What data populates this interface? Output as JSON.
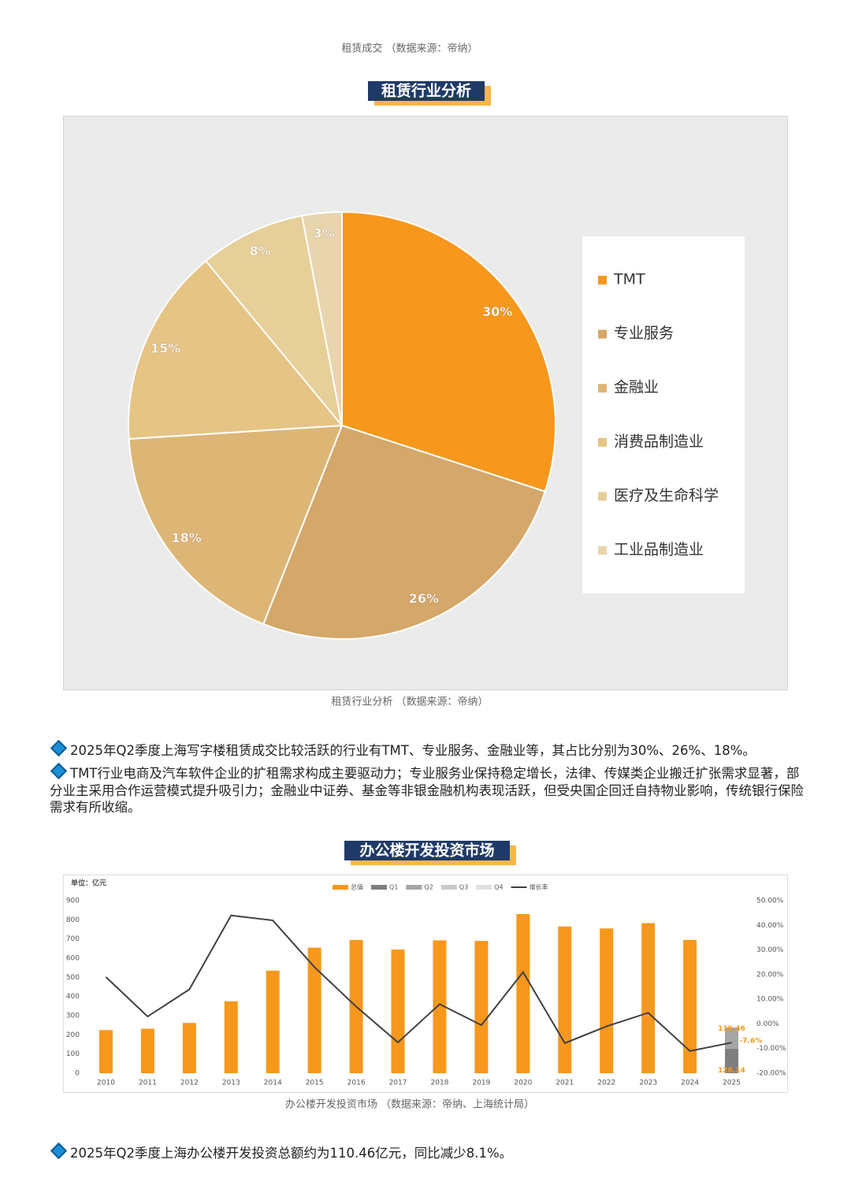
{
  "top_caption": "租赁成交 （数据来源：帝纳）",
  "section_titles": [
    "租赁行业分析",
    "办公楼开发投资市场"
  ],
  "captions": [
    "租赁行业分析 （数据来源：帝纳）",
    "办公楼开发投资市场 （数据来源：帝纳、上海统计局）"
  ],
  "paragraphs": [
    "2025年Q2季度上海写字楼租赁成交比较活跃的行业有TMT、专业服务、金融业等，其占比分别为30%、26%、18%。",
    "TMT行业电商及汽车软件企业的扩租需求构成主要驱动力；专业服务业保持稳定增长，法律、传媒类企业搬迁扩张需求显著，部分业主采用合作运营模式提升吸引力；金融业中证券、基金等非银金融机构表现活跃，但受央国企回迁自持物业影响，传统银行保险需求有所收缩。",
    "2025年Q2季度上海办公楼开发投资总额约为110.46亿元，同比减少8.1%。"
  ],
  "chart_data": [
    {
      "type": "pie",
      "categories": [
        "TMT",
        "专业服务",
        "金融业",
        "消费品制造业",
        "医疗及生命科学",
        "工业品制造业"
      ],
      "values": [
        30,
        26,
        18,
        15,
        8,
        3
      ],
      "value_labels": [
        "30%",
        "26%",
        "18%",
        "15%",
        "8%",
        "3%"
      ],
      "colors": [
        "#f7981d",
        "#d4a76a",
        "#ddb676",
        "#e6c485",
        "#e6cf98",
        "#e8d5ae"
      ],
      "legend": "right"
    },
    {
      "type": "bar",
      "y_label": "单位：亿元",
      "categories": [
        "2010",
        "2011",
        "2012",
        "2013",
        "2014",
        "2015",
        "2016",
        "2017",
        "2018",
        "2019",
        "2020",
        "2021",
        "2022",
        "2023",
        "2024",
        "2025"
      ],
      "series": [
        {
          "name": "总值",
          "color": "#f7981d",
          "values": [
            225,
            232,
            262,
            375,
            535,
            655,
            695,
            645,
            693,
            690,
            830,
            765,
            755,
            783,
            695,
            null
          ]
        },
        {
          "name": "Q1",
          "color": "#7f7f7f",
          "show_values": true,
          "values": [
            null,
            null,
            null,
            null,
            null,
            null,
            null,
            null,
            null,
            null,
            null,
            null,
            null,
            null,
            null,
            128.14
          ]
        },
        {
          "name": "Q2",
          "color": "#a5a5a5",
          "show_values": true,
          "values": [
            null,
            null,
            null,
            null,
            null,
            null,
            null,
            null,
            null,
            null,
            null,
            null,
            null,
            null,
            null,
            110.46
          ]
        },
        {
          "name": "Q3",
          "color": "#c9c9c9",
          "values": [
            null,
            null,
            null,
            null,
            null,
            null,
            null,
            null,
            null,
            null,
            null,
            null,
            null,
            null,
            null,
            null
          ]
        },
        {
          "name": "Q4",
          "color": "#e0e0e0",
          "values": [
            null,
            null,
            null,
            null,
            null,
            null,
            null,
            null,
            null,
            null,
            null,
            null,
            null,
            null,
            null,
            null
          ]
        },
        {
          "name": "增长率",
          "color": "#404040",
          "type": "line",
          "axis": "y2",
          "values": [
            19,
            3,
            14,
            44,
            42,
            23,
            7,
            -7.5,
            8,
            -0.5,
            21,
            -7.8,
            -1,
            4.5,
            -11,
            -7.6
          ],
          "value_labels": [
            null,
            null,
            null,
            null,
            null,
            null,
            null,
            null,
            null,
            null,
            null,
            null,
            null,
            null,
            null,
            "-7.6%"
          ]
        }
      ],
      "ylim": [
        0,
        900
      ],
      "yticks": [
        0,
        100,
        200,
        300,
        400,
        500,
        600,
        700,
        800,
        900
      ],
      "y2lim": [
        -20,
        50
      ],
      "y2ticks": [
        {
          "value": 50,
          "label": "50.00%"
        },
        {
          "value": 40,
          "label": "40.00%"
        },
        {
          "value": 30,
          "label": "30.00%"
        },
        {
          "value": 20,
          "label": "20.00%"
        },
        {
          "value": 10,
          "label": "10.00%"
        },
        {
          "value": 0,
          "label": "0.00%"
        },
        {
          "value": -10,
          "label": "-10.00%"
        },
        {
          "value": -20,
          "label": "-20.00%"
        }
      ],
      "grid": false,
      "legend": "top"
    }
  ]
}
